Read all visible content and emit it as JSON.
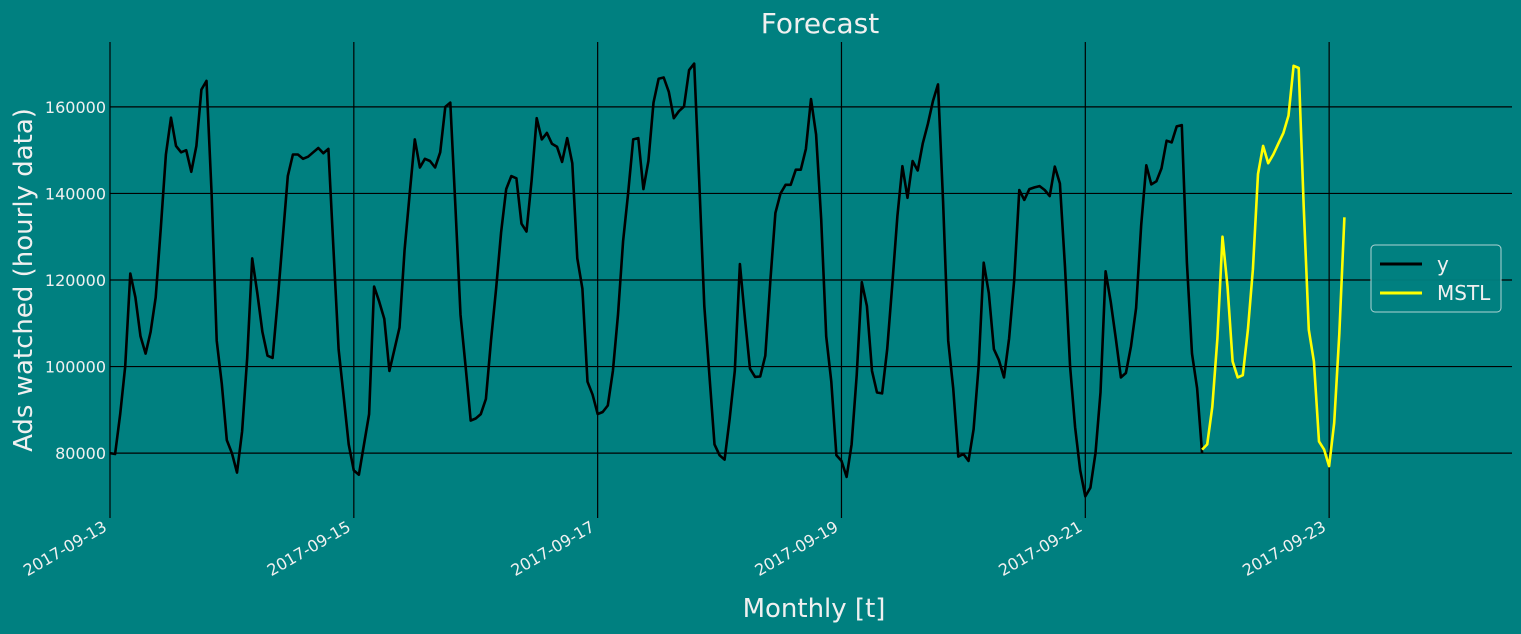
{
  "chart_data": {
    "type": "line",
    "title": "Forecast",
    "xlabel": "Monthly [t]",
    "ylabel": "Ads watched (hourly data)",
    "x_ticks": [
      "2017-09-13",
      "2017-09-15",
      "2017-09-17",
      "2017-09-19",
      "2017-09-21",
      "2017-09-23"
    ],
    "y_ticks": [
      80000,
      100000,
      120000,
      140000,
      160000
    ],
    "xlim": [
      "2017-09-13T00:00",
      "2017-09-24T12:00"
    ],
    "ylim": [
      65000,
      175000
    ],
    "grid": true,
    "legend_position": "right",
    "colors": {
      "background": "#008080",
      "grid": "#000000",
      "y": "#000000",
      "MSTL": "#ffff00"
    },
    "series": [
      {
        "name": "y",
        "start": "2017-09-13T00:00",
        "interval_hours": 1,
        "values": [
          80000,
          79800,
          89000,
          100000,
          121500,
          116000,
          107000,
          103000,
          108000,
          116000,
          132000,
          149000,
          157500,
          151000,
          149500,
          150000,
          145000,
          151000,
          164000,
          166000,
          140000,
          106000,
          96000,
          83000,
          80000,
          75500,
          85000,
          102000,
          125000,
          117000,
          108000,
          102500,
          102000,
          115000,
          129500,
          144000,
          149000,
          149000,
          148000,
          148500,
          149500,
          150500,
          149300,
          150300,
          127000,
          104000,
          93000,
          82000,
          76000,
          75000,
          82000,
          89000,
          118500,
          115000,
          111000,
          99000,
          104000,
          109000,
          127000,
          140000,
          152500,
          146000,
          148000,
          147500,
          146000,
          149500,
          160000,
          161000,
          137000,
          112000,
          100000,
          87500,
          88000,
          89000,
          92500,
          106000,
          118000,
          131000,
          141000,
          144000,
          143500,
          133000,
          131200,
          143000,
          157400,
          152500,
          154000,
          151500,
          150800,
          147300,
          152800,
          147000,
          125000,
          118000,
          96500,
          93500,
          89000,
          89500,
          91000,
          99000,
          112000,
          129000,
          140000,
          152500,
          152800,
          141000,
          147500,
          161000,
          166500,
          166800,
          163500,
          157400,
          159000,
          160100,
          168500,
          170000,
          143000,
          114000,
          98000,
          82000,
          79500,
          78500,
          88000,
          99000,
          123700,
          111000,
          99500,
          97600,
          97700,
          102500,
          120000,
          135500,
          140000,
          142000,
          142000,
          145500,
          145500,
          150300,
          161800,
          153600,
          134000,
          107000,
          96500,
          79500,
          78200,
          74500,
          82000,
          98000,
          119500,
          114000,
          99000,
          94000,
          93800,
          104000,
          119000,
          134800,
          146300,
          139000,
          147500,
          145300,
          151600,
          156000,
          161300,
          165200,
          138000,
          106000,
          95000,
          79200,
          79800,
          78200,
          85500,
          100000,
          124000,
          117000,
          104000,
          101500,
          97500,
          106500,
          120000,
          140800,
          138500,
          141000,
          141400,
          141700,
          140800,
          139400,
          146200,
          142300,
          123000,
          100000,
          86000,
          76000,
          70000,
          72000,
          80000,
          94000,
          122000,
          115000,
          106500,
          97500,
          98500,
          104700,
          113500,
          132700,
          146500,
          142100,
          142800,
          145800,
          152200,
          151800,
          155500,
          155800,
          124000,
          103000,
          95000,
          80000
        ]
      },
      {
        "name": "MSTL",
        "start": "2017-09-21T23:00",
        "interval_hours": 1,
        "values": [
          80800,
          82000,
          90700,
          106500,
          130000,
          118500,
          101200,
          97500,
          98000,
          108500,
          122500,
          144500,
          151000,
          147000,
          149000,
          151500,
          154000,
          158000,
          169500,
          169000,
          137000,
          108500,
          101200,
          82700,
          80800,
          77000,
          87000,
          107500,
          134500
        ]
      }
    ]
  }
}
